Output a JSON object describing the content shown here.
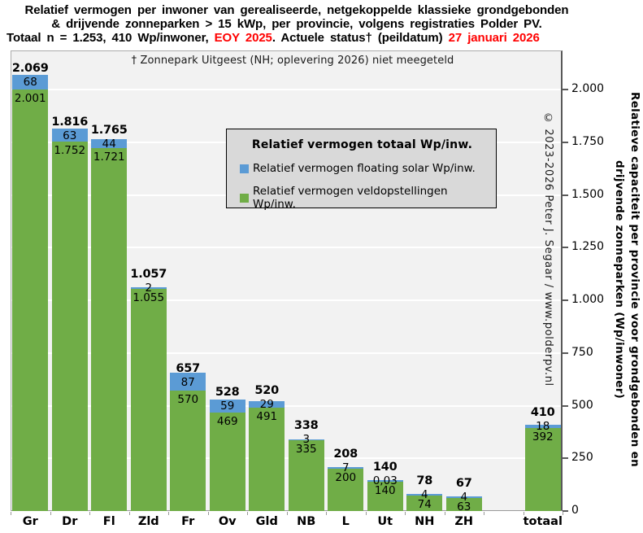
{
  "header": {
    "line1": "Relatief vermogen per inwoner van gerealiseerde, netgekoppelde klassieke grondgebonden",
    "line2": "& drijvende zonneparken > 15 kWp, per provincie, volgens registraties Polder PV.",
    "line3_parts": [
      {
        "text": "Totaal n = 1.253, 410 Wp/inwoner, ",
        "color": "#000000"
      },
      {
        "text": "EOY 2025",
        "color": "#FF0000"
      },
      {
        "text": ". Actuele status† (peildatum) ",
        "color": "#000000"
      },
      {
        "text": "27 januari 2026",
        "color": "#FF0000"
      }
    ]
  },
  "footnote": "† Zonnepark Uitgeest (NH;  oplevering 2026) niet meegeteld",
  "legend": {
    "title": "Relatief vermogen totaal Wp/inw.",
    "items": [
      {
        "label": "Relatief vermogen floating solar Wp/inw.",
        "color": "#5B9BD5"
      },
      {
        "label": "Relatief vermogen veldopstellingen Wp/inw.",
        "color": "#70AD47"
      }
    ]
  },
  "copyright": "© 2023-2026 Peter J. Segaar / www.polderpv.nl",
  "colors": {
    "floating": "#5B9BD5",
    "veld": "#70AD47",
    "plot_bg": "#F2F2F2",
    "gridline": "#FFFFFF",
    "legend_bg": "#D9D9D9",
    "accent_red": "#FF0000"
  },
  "chart_data": {
    "type": "bar",
    "stacked": true,
    "categories": [
      "Gr",
      "Dr",
      "Fl",
      "Zld",
      "Fr",
      "Ov",
      "Gld",
      "NB",
      "L",
      "Ut",
      "NH",
      "ZH",
      "totaal"
    ],
    "gap_before_last": true,
    "series": [
      {
        "name": "Relatief vermogen floating solar Wp/inw.",
        "color": "#5B9BD5",
        "values": [
          68,
          63,
          44,
          2,
          87,
          59,
          29,
          3,
          7,
          0.03,
          4,
          4,
          18
        ],
        "labels": [
          "68",
          "63",
          "44",
          "2",
          "87",
          "59",
          "29",
          "3",
          "7",
          "0,03",
          "4",
          "4",
          "18"
        ]
      },
      {
        "name": "Relatief vermogen veldopstellingen Wp/inw.",
        "color": "#70AD47",
        "values": [
          2001,
          1752,
          1721,
          1055,
          570,
          469,
          491,
          335,
          200,
          140,
          74,
          63,
          392
        ],
        "labels": [
          "2.001",
          "1.752",
          "1.721",
          "1.055",
          "570",
          "469",
          "491",
          "335",
          "200",
          "140",
          "74",
          "63",
          "392"
        ]
      }
    ],
    "totals": {
      "values": [
        2069,
        1816,
        1765,
        1057,
        657,
        528,
        520,
        338,
        208,
        140,
        78,
        67,
        410
      ],
      "labels": [
        "2.069",
        "1.816",
        "1.765",
        "1.057",
        "657",
        "528",
        "520",
        "338",
        "208",
        "140",
        "78",
        "67",
        "410"
      ]
    },
    "ylim": [
      0,
      2190
    ],
    "yticks": {
      "values": [
        0,
        250,
        500,
        750,
        1000,
        1250,
        1500,
        1750,
        2000
      ],
      "labels": [
        "0",
        "250",
        "500",
        "750",
        "1.000",
        "1.250",
        "1.500",
        "1.750",
        "2.000"
      ]
    },
    "ylabel_line1": "Relatieve capaciteit per provincie voor grondgebonden en",
    "ylabel_line2": "drijvende zonneparken  (Wp/inwoner)",
    "legend_position": "upper-center",
    "grid": true
  }
}
